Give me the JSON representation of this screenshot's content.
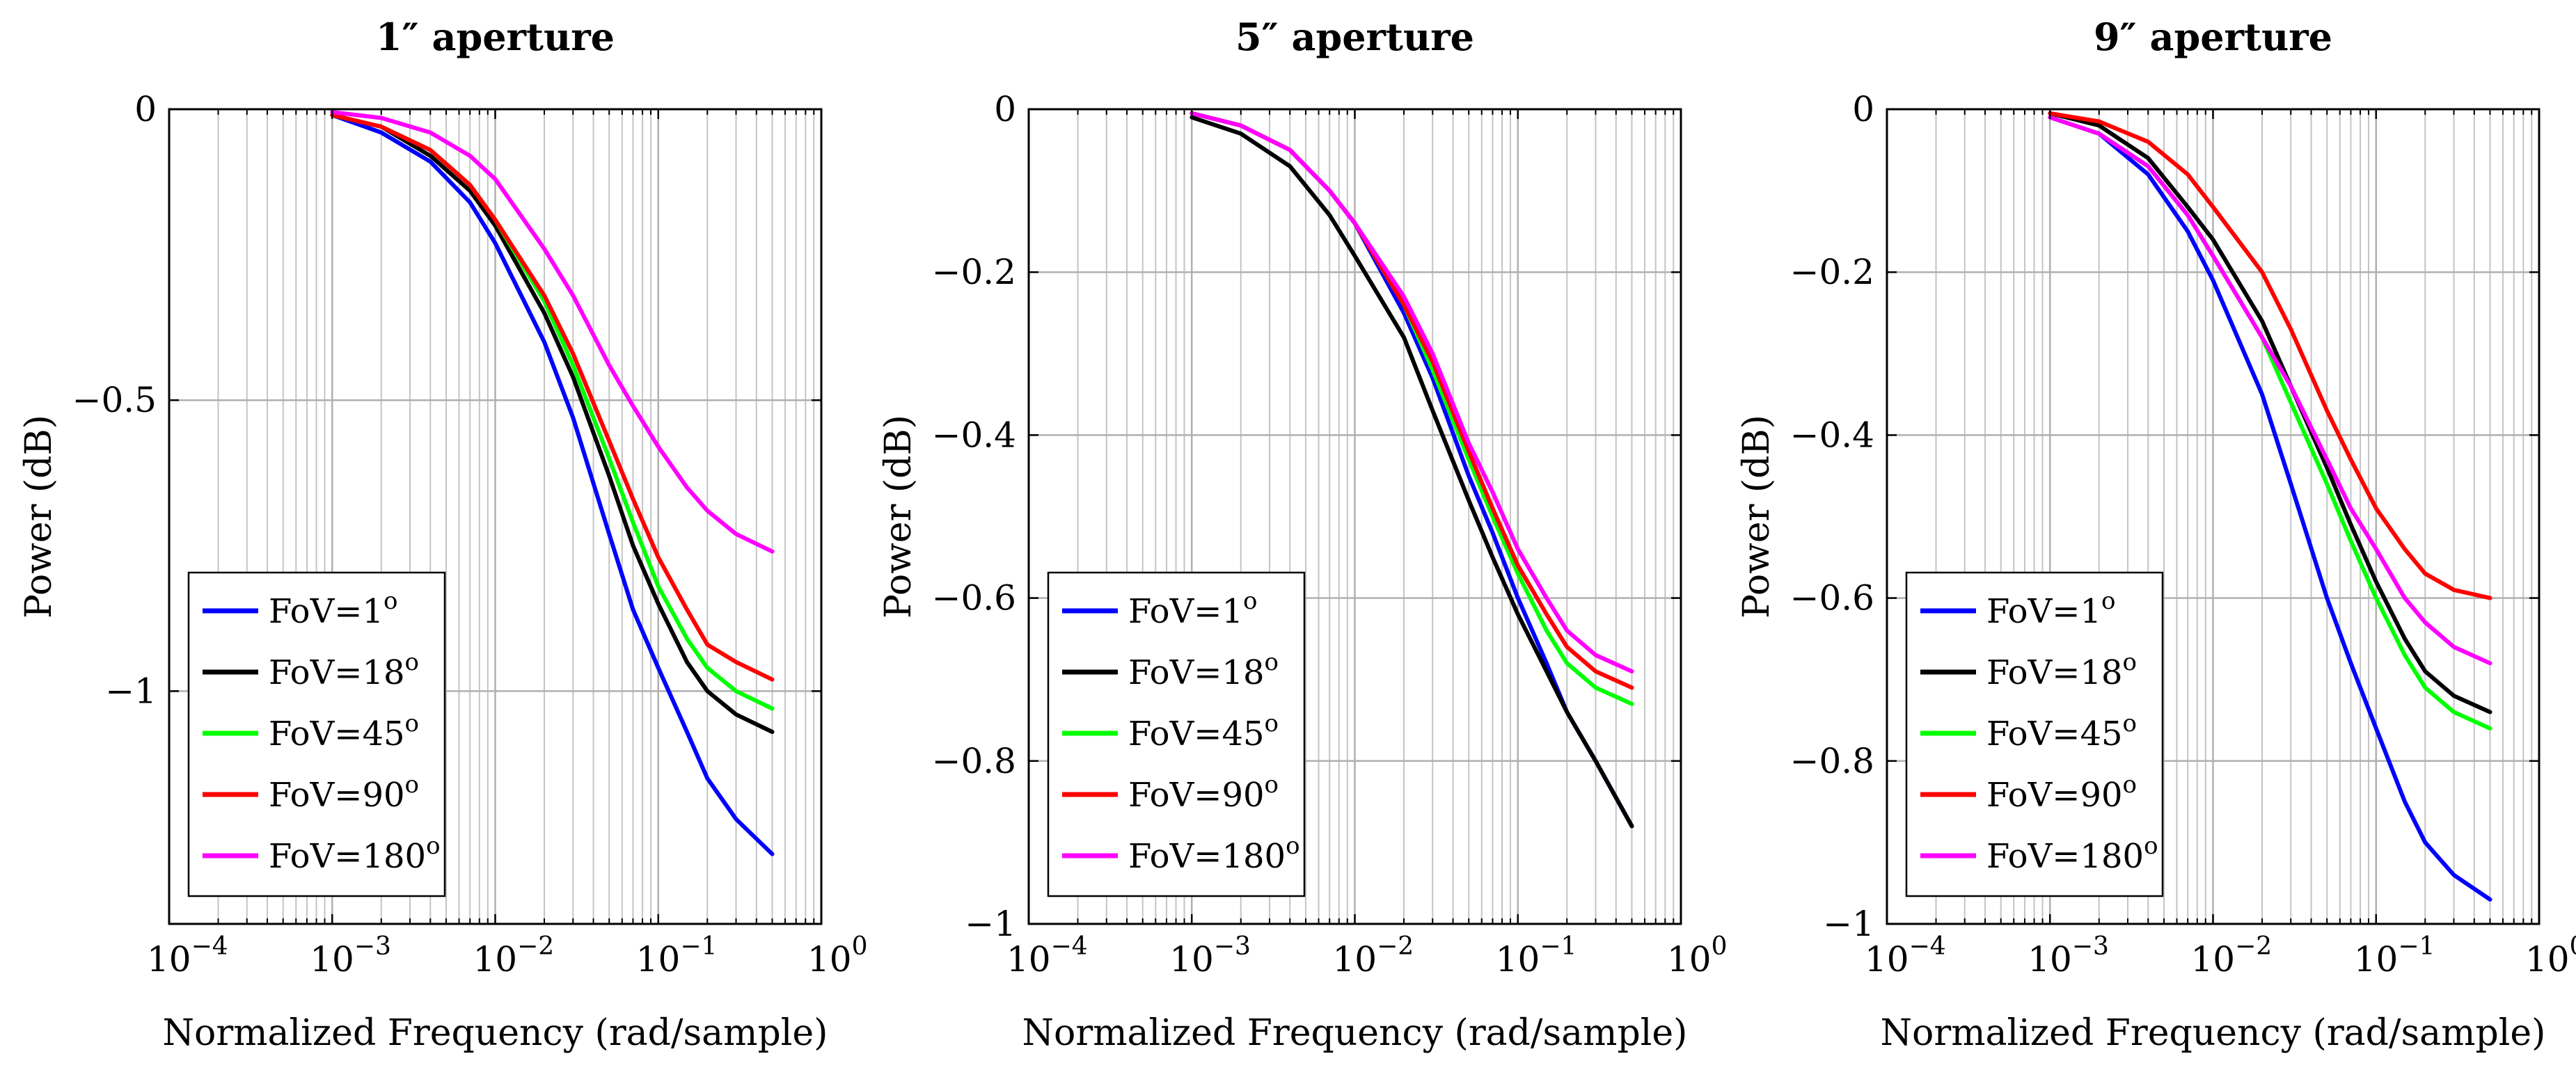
{
  "figure": {
    "ylabel": "Power (dB)",
    "xlabel": "Normalized Frequency (rad/sample)"
  },
  "colors": {
    "FoV=1": "#0000ff",
    "FoV=18": "#000000",
    "FoV=45": "#00ff00",
    "FoV=90": "#ff0000",
    "FoV=180": "#ff00ff"
  },
  "chart_data": [
    {
      "type": "line",
      "title": "1″ aperture",
      "xlabel": "Normalized Frequency (rad/sample)",
      "ylabel": "Power (dB)",
      "xscale": "log",
      "xlim": [
        0.0001,
        1
      ],
      "ylim": [
        -1.4,
        0
      ],
      "yticks": [
        0,
        -0.5,
        -1
      ],
      "ytick_labels": [
        "0",
        "−0.5",
        "−1"
      ],
      "xtick_exponents": [
        "−4",
        "−3",
        "−2",
        "−1",
        "0"
      ],
      "grid": true,
      "legend_position": "bottom-left",
      "series": [
        {
          "name": "FoV=1",
          "label": "FoV=1",
          "sup": "o",
          "color": "#0000ff",
          "x": [
            0.001,
            0.002,
            0.004,
            0.007,
            0.01,
            0.02,
            0.03,
            0.05,
            0.07,
            0.1,
            0.15,
            0.2,
            0.3,
            0.5
          ],
          "y": [
            -0.01,
            -0.04,
            -0.09,
            -0.16,
            -0.23,
            -0.4,
            -0.53,
            -0.73,
            -0.86,
            -0.96,
            -1.07,
            -1.15,
            -1.22,
            -1.28
          ]
        },
        {
          "name": "FoV=18",
          "label": "FoV=18",
          "sup": "o",
          "color": "#000000",
          "x": [
            0.001,
            0.002,
            0.004,
            0.007,
            0.01,
            0.02,
            0.03,
            0.05,
            0.07,
            0.1,
            0.15,
            0.2,
            0.3,
            0.5
          ],
          "y": [
            -0.01,
            -0.03,
            -0.08,
            -0.14,
            -0.2,
            -0.35,
            -0.46,
            -0.63,
            -0.75,
            -0.85,
            -0.95,
            -1.0,
            -1.04,
            -1.07
          ]
        },
        {
          "name": "FoV=45",
          "label": "FoV=45",
          "sup": "o",
          "color": "#00ff00",
          "x": [
            0.001,
            0.002,
            0.004,
            0.007,
            0.01,
            0.02,
            0.03,
            0.05,
            0.07,
            0.1,
            0.15,
            0.2,
            0.3,
            0.5
          ],
          "y": [
            -0.01,
            -0.03,
            -0.07,
            -0.13,
            -0.19,
            -0.33,
            -0.44,
            -0.6,
            -0.71,
            -0.82,
            -0.91,
            -0.96,
            -1.0,
            -1.03
          ]
        },
        {
          "name": "FoV=90",
          "label": "FoV=90",
          "sup": "o",
          "color": "#ff0000",
          "x": [
            0.001,
            0.002,
            0.004,
            0.007,
            0.01,
            0.02,
            0.03,
            0.05,
            0.07,
            0.1,
            0.15,
            0.2,
            0.3,
            0.5
          ],
          "y": [
            -0.01,
            -0.03,
            -0.07,
            -0.13,
            -0.19,
            -0.32,
            -0.42,
            -0.57,
            -0.67,
            -0.77,
            -0.86,
            -0.92,
            -0.95,
            -0.98
          ]
        },
        {
          "name": "FoV=180",
          "label": "FoV=180",
          "sup": "o",
          "color": "#ff00ff",
          "x": [
            0.001,
            0.002,
            0.004,
            0.007,
            0.01,
            0.02,
            0.03,
            0.05,
            0.07,
            0.1,
            0.15,
            0.2,
            0.3,
            0.5
          ],
          "y": [
            -0.005,
            -0.015,
            -0.04,
            -0.08,
            -0.12,
            -0.24,
            -0.32,
            -0.44,
            -0.51,
            -0.58,
            -0.65,
            -0.69,
            -0.73,
            -0.76
          ]
        }
      ]
    },
    {
      "type": "line",
      "title": "5″ aperture",
      "xlabel": "Normalized Frequency (rad/sample)",
      "ylabel": "Power (dB)",
      "xscale": "log",
      "xlim": [
        0.0001,
        1
      ],
      "ylim": [
        -1,
        0
      ],
      "yticks": [
        0,
        -0.2,
        -0.4,
        -0.6,
        -0.8,
        -1
      ],
      "ytick_labels": [
        "0",
        "−0.2",
        "−0.4",
        "−0.6",
        "−0.8",
        "−1"
      ],
      "xtick_exponents": [
        "−4",
        "−3",
        "−2",
        "−1",
        "0"
      ],
      "grid": true,
      "legend_position": "bottom-left",
      "series": [
        {
          "name": "FoV=1",
          "label": "FoV=1",
          "sup": "o",
          "color": "#0000ff",
          "x": [
            0.001,
            0.002,
            0.004,
            0.007,
            0.01,
            0.02,
            0.03,
            0.05,
            0.07,
            0.1,
            0.15,
            0.2,
            0.3,
            0.5
          ],
          "y": [
            -0.005,
            -0.02,
            -0.05,
            -0.1,
            -0.14,
            -0.25,
            -0.33,
            -0.45,
            -0.52,
            -0.6,
            -0.68,
            -0.74,
            -0.8,
            -0.88
          ]
        },
        {
          "name": "FoV=18",
          "label": "FoV=18",
          "sup": "o",
          "color": "#000000",
          "x": [
            0.001,
            0.002,
            0.004,
            0.007,
            0.01,
            0.02,
            0.03,
            0.05,
            0.07,
            0.1,
            0.15,
            0.2,
            0.3,
            0.5
          ],
          "y": [
            -0.01,
            -0.03,
            -0.07,
            -0.13,
            -0.18,
            -0.28,
            -0.37,
            -0.48,
            -0.55,
            -0.62,
            -0.69,
            -0.74,
            -0.8,
            -0.88
          ]
        },
        {
          "name": "FoV=45",
          "label": "FoV=45",
          "sup": "o",
          "color": "#00ff00",
          "x": [
            0.001,
            0.002,
            0.004,
            0.007,
            0.01,
            0.02,
            0.03,
            0.05,
            0.07,
            0.1,
            0.15,
            0.2,
            0.3,
            0.5
          ],
          "y": [
            -0.005,
            -0.02,
            -0.05,
            -0.1,
            -0.14,
            -0.24,
            -0.32,
            -0.43,
            -0.5,
            -0.57,
            -0.64,
            -0.68,
            -0.71,
            -0.73
          ]
        },
        {
          "name": "FoV=90",
          "label": "FoV=90",
          "sup": "o",
          "color": "#ff0000",
          "x": [
            0.001,
            0.002,
            0.004,
            0.007,
            0.01,
            0.02,
            0.03,
            0.05,
            0.07,
            0.1,
            0.15,
            0.2,
            0.3,
            0.5
          ],
          "y": [
            -0.005,
            -0.02,
            -0.05,
            -0.1,
            -0.14,
            -0.24,
            -0.31,
            -0.42,
            -0.49,
            -0.56,
            -0.62,
            -0.66,
            -0.69,
            -0.71
          ]
        },
        {
          "name": "FoV=180",
          "label": "FoV=180",
          "sup": "o",
          "color": "#ff00ff",
          "x": [
            0.001,
            0.002,
            0.004,
            0.007,
            0.01,
            0.02,
            0.03,
            0.05,
            0.07,
            0.1,
            0.15,
            0.2,
            0.3,
            0.5
          ],
          "y": [
            -0.005,
            -0.02,
            -0.05,
            -0.1,
            -0.14,
            -0.23,
            -0.3,
            -0.41,
            -0.47,
            -0.54,
            -0.6,
            -0.64,
            -0.67,
            -0.69
          ]
        }
      ]
    },
    {
      "type": "line",
      "title": "9″ aperture",
      "xlabel": "Normalized Frequency (rad/sample)",
      "ylabel": "Power (dB)",
      "xscale": "log",
      "xlim": [
        0.0001,
        1
      ],
      "ylim": [
        -1,
        0
      ],
      "yticks": [
        0,
        -0.2,
        -0.4,
        -0.6,
        -0.8,
        -1
      ],
      "ytick_labels": [
        "0",
        "−0.2",
        "−0.4",
        "−0.6",
        "−0.8",
        "−1"
      ],
      "xtick_exponents": [
        "−4",
        "−3",
        "−2",
        "−1",
        "0"
      ],
      "grid": true,
      "legend_position": "bottom-left",
      "series": [
        {
          "name": "FoV=1",
          "label": "FoV=1",
          "sup": "o",
          "color": "#0000ff",
          "x": [
            0.001,
            0.002,
            0.004,
            0.007,
            0.01,
            0.02,
            0.03,
            0.05,
            0.07,
            0.1,
            0.15,
            0.2,
            0.3,
            0.5
          ],
          "y": [
            -0.01,
            -0.03,
            -0.08,
            -0.15,
            -0.21,
            -0.35,
            -0.46,
            -0.6,
            -0.68,
            -0.76,
            -0.85,
            -0.9,
            -0.94,
            -0.97
          ]
        },
        {
          "name": "FoV=18",
          "label": "FoV=18",
          "sup": "o",
          "color": "#000000",
          "x": [
            0.001,
            0.002,
            0.004,
            0.007,
            0.01,
            0.02,
            0.03,
            0.05,
            0.07,
            0.1,
            0.15,
            0.2,
            0.3,
            0.5
          ],
          "y": [
            -0.005,
            -0.02,
            -0.06,
            -0.12,
            -0.16,
            -0.26,
            -0.34,
            -0.44,
            -0.51,
            -0.58,
            -0.65,
            -0.69,
            -0.72,
            -0.74
          ]
        },
        {
          "name": "FoV=45",
          "label": "FoV=45",
          "sup": "o",
          "color": "#00ff00",
          "x": [
            0.001,
            0.002,
            0.004,
            0.007,
            0.01,
            0.02,
            0.03,
            0.05,
            0.07,
            0.1,
            0.15,
            0.2,
            0.3,
            0.5
          ],
          "y": [
            -0.01,
            -0.03,
            -0.07,
            -0.13,
            -0.18,
            -0.28,
            -0.36,
            -0.46,
            -0.53,
            -0.6,
            -0.67,
            -0.71,
            -0.74,
            -0.76
          ]
        },
        {
          "name": "FoV=90",
          "label": "FoV=90",
          "sup": "o",
          "color": "#ff0000",
          "x": [
            0.001,
            0.002,
            0.004,
            0.007,
            0.01,
            0.02,
            0.03,
            0.05,
            0.07,
            0.1,
            0.15,
            0.2,
            0.3,
            0.5
          ],
          "y": [
            -0.005,
            -0.015,
            -0.04,
            -0.08,
            -0.12,
            -0.2,
            -0.27,
            -0.37,
            -0.43,
            -0.49,
            -0.54,
            -0.57,
            -0.59,
            -0.6
          ]
        },
        {
          "name": "FoV=180",
          "label": "FoV=180",
          "sup": "o",
          "color": "#ff00ff",
          "x": [
            0.001,
            0.002,
            0.004,
            0.007,
            0.01,
            0.02,
            0.03,
            0.05,
            0.07,
            0.1,
            0.15,
            0.2,
            0.3,
            0.5
          ],
          "y": [
            -0.01,
            -0.03,
            -0.07,
            -0.13,
            -0.18,
            -0.28,
            -0.34,
            -0.43,
            -0.49,
            -0.54,
            -0.6,
            -0.63,
            -0.66,
            -0.68
          ]
        }
      ]
    }
  ]
}
